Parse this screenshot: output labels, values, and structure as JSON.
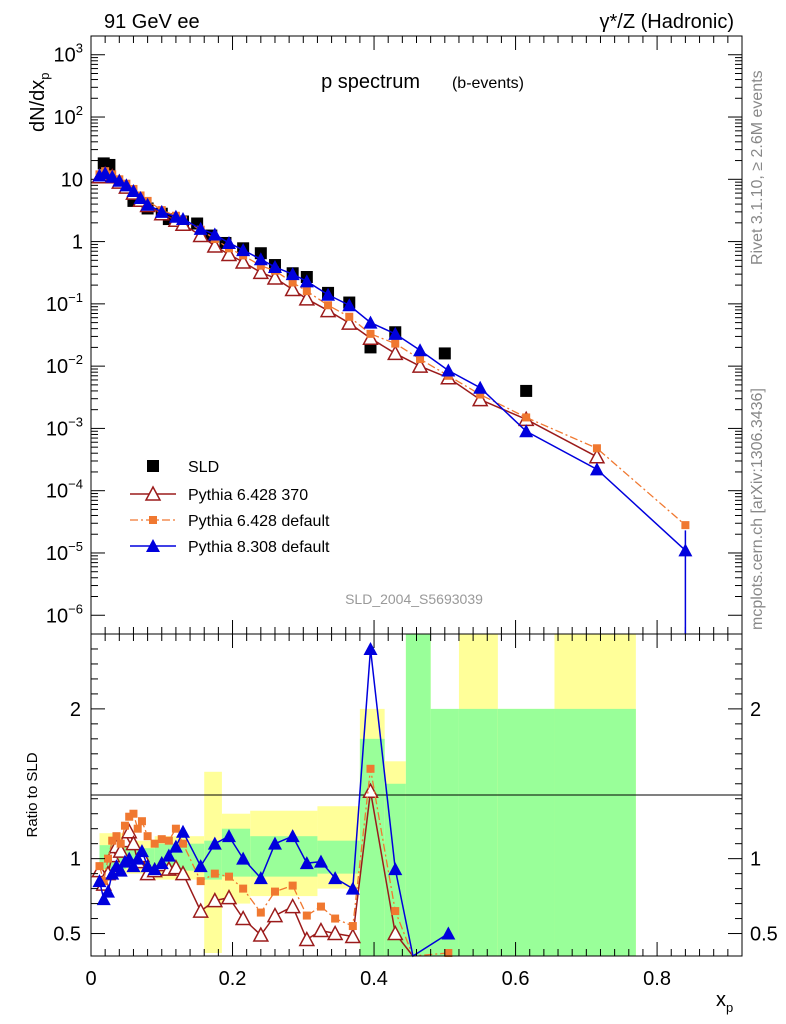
{
  "header": {
    "left": "91 GeV ee",
    "right": "γ*/Z (Hadronic)"
  },
  "side_text": {
    "top": "Rivet 3.1.10, ≥ 2.6M events",
    "bottom": "mcplots.cern.ch [arXiv:1306.3436]"
  },
  "chart_data": [
    {
      "type": "scatter",
      "title": "p spectrum",
      "subtitle": "(b-events)",
      "ylabel": "dN/dx",
      "ylabel_sub": "p",
      "log_y": true,
      "xlim": [
        0,
        0.92
      ],
      "ylim": [
        5e-07,
        2000
      ],
      "watermark": "SLD_2004_S5693039",
      "y_ticks": [
        {
          "v": 1000,
          "m": "10",
          "e": "3"
        },
        {
          "v": 100,
          "m": "10",
          "e": "2"
        },
        {
          "v": 10,
          "m": "10",
          "e": ""
        },
        {
          "v": 1,
          "m": "1",
          "e": ""
        },
        {
          "v": 0.1,
          "m": "10",
          "e": "−1"
        },
        {
          "v": 0.01,
          "m": "10",
          "e": "−2"
        },
        {
          "v": 0.001,
          "m": "10",
          "e": "−3"
        },
        {
          "v": 0.0001,
          "m": "10",
          "e": "−4"
        },
        {
          "v": 1e-05,
          "m": "10",
          "e": "−5"
        },
        {
          "v": 1e-06,
          "m": "10",
          "e": "−6"
        }
      ],
      "series": [
        {
          "name": "SLD",
          "color": "#000000",
          "style": "data",
          "x": [
            0.018,
            0.026,
            0.06,
            0.08,
            0.1,
            0.11,
            0.13,
            0.15,
            0.17,
            0.19,
            0.215,
            0.24,
            0.26,
            0.285,
            0.305,
            0.335,
            0.365,
            0.395,
            0.43,
            0.5,
            0.615
          ],
          "y": [
            18,
            17,
            4.5,
            3.4,
            2.8,
            2.3,
            2.1,
            1.95,
            1.25,
            0.95,
            0.78,
            0.65,
            0.42,
            0.31,
            0.27,
            0.15,
            0.105,
            0.02,
            0.035,
            0.016,
            0.004
          ]
        },
        {
          "name": "Pythia 6.428 370",
          "color": "#9b1b1b",
          "style": "open-triangle",
          "x": [
            0.012,
            0.02,
            0.03,
            0.04,
            0.05,
            0.06,
            0.07,
            0.08,
            0.1,
            0.12,
            0.13,
            0.155,
            0.175,
            0.195,
            0.215,
            0.24,
            0.26,
            0.285,
            0.305,
            0.335,
            0.365,
            0.395,
            0.43,
            0.465,
            0.505,
            0.55,
            0.615,
            0.715
          ],
          "y": [
            11,
            12,
            11,
            9,
            7.5,
            6,
            4.6,
            3.8,
            2.8,
            2.2,
            1.9,
            1.25,
            0.85,
            0.62,
            0.47,
            0.32,
            0.26,
            0.17,
            0.12,
            0.078,
            0.049,
            0.028,
            0.016,
            0.01,
            0.0065,
            0.0029,
            0.0014,
            0.00035
          ]
        },
        {
          "name": "Pythia 6.428 default",
          "color": "#f07830",
          "style": "dashdot-square",
          "x": [
            0.012,
            0.02,
            0.03,
            0.04,
            0.05,
            0.06,
            0.07,
            0.08,
            0.1,
            0.12,
            0.13,
            0.155,
            0.175,
            0.195,
            0.215,
            0.24,
            0.26,
            0.285,
            0.305,
            0.335,
            0.365,
            0.395,
            0.43,
            0.465,
            0.505,
            0.55,
            0.615,
            0.715,
            0.84
          ],
          "y": [
            12,
            13.5,
            12,
            10,
            8.5,
            7,
            5.5,
            4.5,
            3.2,
            2.6,
            2.2,
            1.55,
            1.1,
            0.78,
            0.6,
            0.41,
            0.34,
            0.22,
            0.16,
            0.095,
            0.062,
            0.033,
            0.023,
            0.013,
            0.007,
            0.0035,
            0.0015,
            0.00048,
            2.8e-05
          ]
        },
        {
          "name": "Pythia 8.308 default",
          "color": "#0000dd",
          "style": "solid-triangle",
          "x": [
            0.012,
            0.02,
            0.03,
            0.04,
            0.05,
            0.06,
            0.07,
            0.08,
            0.1,
            0.12,
            0.13,
            0.155,
            0.175,
            0.195,
            0.215,
            0.24,
            0.26,
            0.285,
            0.305,
            0.335,
            0.365,
            0.395,
            0.43,
            0.465,
            0.505,
            0.55,
            0.615,
            0.715,
            0.84
          ],
          "y": [
            11.5,
            12.5,
            11,
            9.5,
            8,
            6.5,
            5,
            3.9,
            3,
            2.5,
            2.3,
            1.6,
            1.3,
            0.95,
            0.73,
            0.52,
            0.39,
            0.3,
            0.23,
            0.14,
            0.095,
            0.05,
            0.033,
            0.018,
            0.0085,
            0.0045,
            0.0009,
            0.00022,
            1.1e-05
          ]
        }
      ]
    },
    {
      "type": "scatter",
      "ylabel": "Ratio to SLD",
      "xlabel": "x",
      "xlabel_sub": "p",
      "xlim": [
        0,
        0.92
      ],
      "ylim": [
        0.35,
        2.5
      ],
      "x_ticks": [
        "0",
        "0.2",
        "0.4",
        "0.6",
        "0.8"
      ],
      "y_ticks": [
        "0.5",
        "1",
        "2"
      ],
      "bands": [
        {
          "x0": 0.012,
          "x1": 0.05,
          "y_lo": 0.88,
          "y_hi": 1.17,
          "g_lo": 0.93,
          "g_hi": 1.09
        },
        {
          "x0": 0.05,
          "x1": 0.09,
          "y_lo": 0.9,
          "y_hi": 1.12,
          "g_lo": 0.94,
          "g_hi": 1.07
        },
        {
          "x0": 0.09,
          "x1": 0.16,
          "y_lo": 0.86,
          "y_hi": 1.15,
          "g_lo": 0.92,
          "g_hi": 1.1
        },
        {
          "x0": 0.16,
          "x1": 0.185,
          "y_lo": 0.37,
          "y_hi": 1.58,
          "g_lo": 0.86,
          "g_hi": 1.12
        },
        {
          "x0": 0.185,
          "x1": 0.225,
          "y_lo": 0.7,
          "y_hi": 1.3,
          "g_lo": 0.88,
          "g_hi": 1.2
        },
        {
          "x0": 0.225,
          "x1": 0.32,
          "y_lo": 0.75,
          "y_hi": 1.32,
          "g_lo": 0.88,
          "g_hi": 1.15
        },
        {
          "x0": 0.32,
          "x1": 0.38,
          "y_lo": 0.8,
          "y_hi": 1.35,
          "g_lo": 0.9,
          "g_hi": 1.12
        },
        {
          "x0": 0.38,
          "x1": 0.415,
          "y_lo": 0.35,
          "y_hi": 2.0,
          "g_lo": 0.35,
          "g_hi": 1.8
        },
        {
          "x0": 0.415,
          "x1": 0.445,
          "y_lo": 0.35,
          "y_hi": 1.65,
          "g_lo": 0.35,
          "g_hi": 1.5
        },
        {
          "x0": 0.445,
          "x1": 0.48,
          "y_lo": 0.35,
          "y_hi": 2.5,
          "g_lo": 0.35,
          "g_hi": 2.5
        },
        {
          "x0": 0.48,
          "x1": 0.52,
          "y_lo": 0.35,
          "y_hi": 0.6,
          "g_lo": 0.35,
          "g_hi": 2.0
        },
        {
          "x0": 0.52,
          "x1": 0.575,
          "y_lo": 0.35,
          "y_hi": 2.5,
          "g_lo": 0.35,
          "g_hi": 2.0
        },
        {
          "x0": 0.575,
          "x1": 0.655,
          "y_lo": 0.35,
          "y_hi": 2.0,
          "g_lo": 0.35,
          "g_hi": 2.0
        },
        {
          "x0": 0.655,
          "x1": 0.77,
          "y_lo": 0.35,
          "y_hi": 2.5,
          "g_lo": 0.35,
          "g_hi": 2.0
        }
      ],
      "series": [
        {
          "name": "Pythia 6.428 370",
          "color": "#9b1b1b",
          "style": "open-triangle",
          "x": [
            0.012,
            0.018,
            0.024,
            0.03,
            0.036,
            0.042,
            0.048,
            0.054,
            0.06,
            0.066,
            0.072,
            0.08,
            0.09,
            0.1,
            0.11,
            0.12,
            0.13,
            0.155,
            0.175,
            0.195,
            0.215,
            0.24,
            0.26,
            0.285,
            0.305,
            0.325,
            0.345,
            0.37,
            0.395,
            0.43,
            0.455
          ],
          "y": [
            0.92,
            0.83,
            0.9,
            1.02,
            1.08,
            1.05,
            1.12,
            1.18,
            1.1,
            0.98,
            1.02,
            0.9,
            0.92,
            0.96,
            0.93,
            0.94,
            0.9,
            0.65,
            0.72,
            0.74,
            0.6,
            0.49,
            0.62,
            0.68,
            0.46,
            0.52,
            0.5,
            0.48,
            1.45,
            0.5,
            0.3
          ]
        },
        {
          "name": "Pythia 6.428 default",
          "color": "#f07830",
          "style": "dashdot-square",
          "x": [
            0.012,
            0.018,
            0.024,
            0.03,
            0.036,
            0.042,
            0.048,
            0.054,
            0.06,
            0.066,
            0.072,
            0.08,
            0.09,
            0.1,
            0.11,
            0.12,
            0.13,
            0.155,
            0.175,
            0.195,
            0.215,
            0.24,
            0.26,
            0.285,
            0.305,
            0.325,
            0.345,
            0.37,
            0.395,
            0.43,
            0.455,
            0.505
          ],
          "y": [
            0.95,
            0.85,
            1.0,
            1.12,
            1.15,
            1.1,
            1.22,
            1.28,
            1.3,
            1.2,
            1.25,
            1.15,
            1.1,
            1.13,
            1.12,
            1.2,
            1.1,
            0.85,
            0.9,
            0.88,
            0.8,
            0.64,
            0.78,
            0.82,
            0.62,
            0.68,
            0.6,
            0.55,
            1.6,
            0.65,
            0.35,
            0.37
          ]
        },
        {
          "name": "Pythia 8.308 default",
          "color": "#0000dd",
          "style": "solid-triangle",
          "x": [
            0.012,
            0.018,
            0.024,
            0.03,
            0.036,
            0.042,
            0.048,
            0.054,
            0.06,
            0.066,
            0.072,
            0.08,
            0.09,
            0.1,
            0.11,
            0.12,
            0.13,
            0.155,
            0.175,
            0.195,
            0.215,
            0.24,
            0.26,
            0.285,
            0.305,
            0.325,
            0.345,
            0.37,
            0.395,
            0.43,
            0.455,
            0.505
          ],
          "y": [
            0.85,
            0.73,
            0.78,
            0.9,
            0.95,
            0.92,
            0.98,
            1.0,
            0.95,
            1.0,
            1.05,
            0.95,
            0.93,
            0.97,
            1.02,
            1.08,
            1.18,
            0.95,
            1.1,
            1.15,
            1.0,
            0.87,
            1.1,
            1.15,
            0.97,
            0.98,
            0.87,
            0.8,
            2.4,
            0.93,
            0.35,
            0.5
          ]
        }
      ]
    }
  ]
}
